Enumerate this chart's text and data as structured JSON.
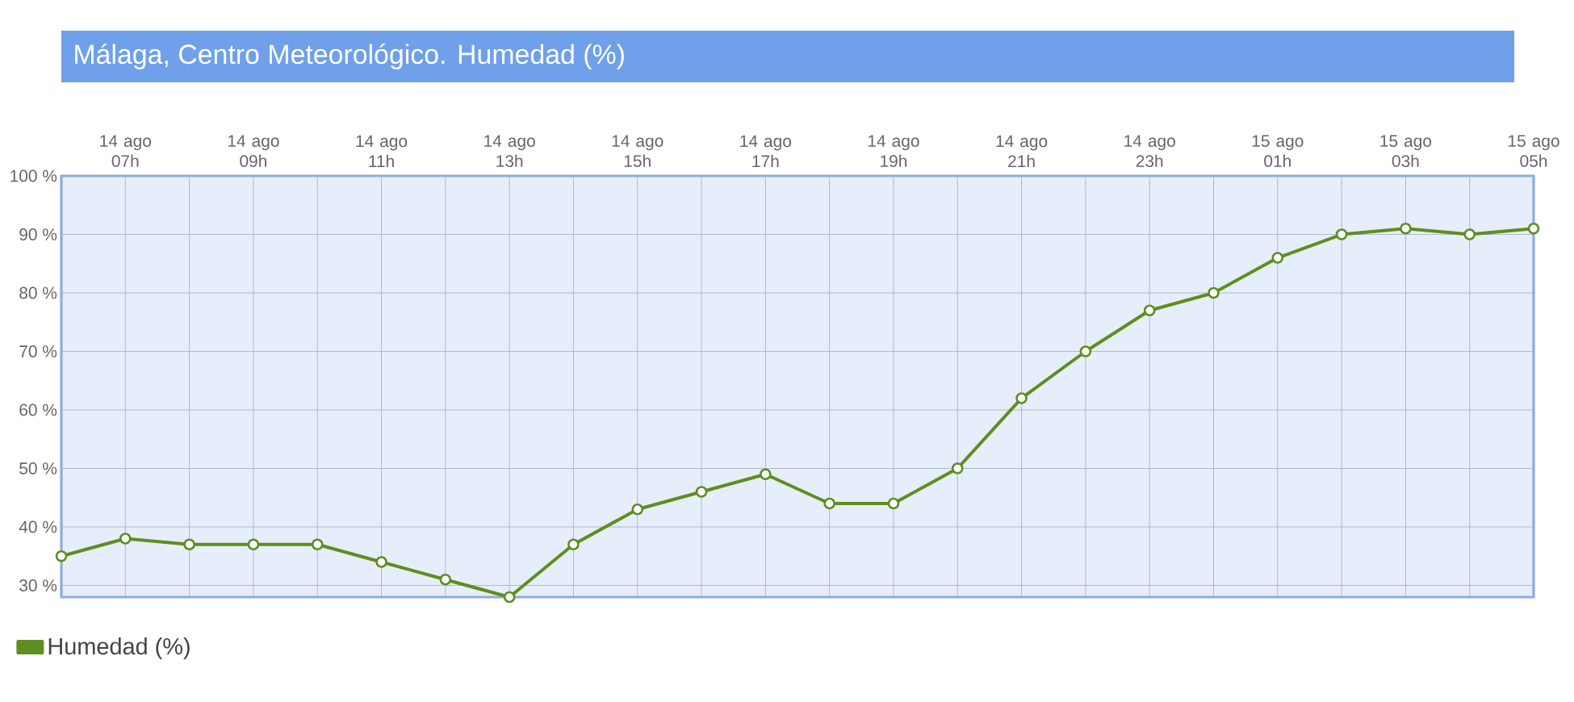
{
  "chart_data": {
    "type": "line",
    "title": "Málaga, Centro Meteorológico. Humedad (%)",
    "categories": [
      null,
      "14 ago 07h",
      null,
      "14 ago 09h",
      null,
      "14 ago 11h",
      null,
      "14 ago 13h",
      null,
      "14 ago 15h",
      null,
      "14 ago 17h",
      null,
      "14 ago 19h",
      null,
      "14 ago 21h",
      null,
      "14 ago 23h",
      null,
      "15 ago 01h",
      null,
      "15 ago 03h",
      null,
      "15 ago 05h"
    ],
    "series": [
      {
        "name": "Humedad (%)",
        "color": "#5e8e1e",
        "values": [
          35,
          38,
          37,
          37,
          37,
          34,
          31,
          28,
          37,
          43,
          46,
          49,
          44,
          44,
          50,
          62,
          70,
          77,
          80,
          86,
          90,
          91,
          90,
          91
        ]
      }
    ],
    "ylim": [
      28,
      100
    ],
    "yticks": [
      {
        "value": 30,
        "label": "30 %"
      },
      {
        "value": 40,
        "label": "40 %"
      },
      {
        "value": 50,
        "label": "50 %"
      },
      {
        "value": 60,
        "label": "60 %"
      },
      {
        "value": 70,
        "label": "70 %"
      },
      {
        "value": 80,
        "label": "80 %"
      },
      {
        "value": 90,
        "label": "90 %"
      },
      {
        "value": 100,
        "label": "100 %"
      }
    ],
    "grid": true,
    "legend": "bottom left",
    "marker": "circle",
    "line_style": "solid"
  }
}
